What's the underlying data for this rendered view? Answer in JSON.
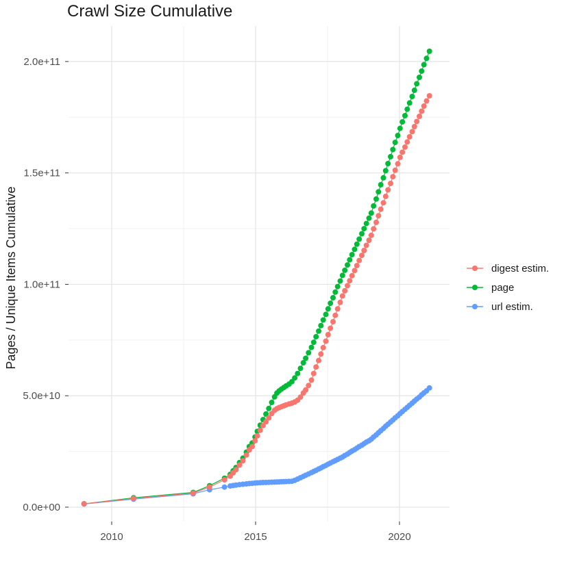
{
  "title": "Crawl Size Cumulative",
  "colors": {
    "digest": "#F8766D",
    "page": "#00BA38",
    "url": "#619CFF",
    "grid_major": "#E4E4E4",
    "grid_minor": "#F1F1F1",
    "tick": "#333333",
    "tick_label": "#4D4D4D",
    "text": "#1A1A1A",
    "background": "#FFFFFF"
  },
  "legend": {
    "position": "right",
    "items": [
      {
        "label": "digest estim.",
        "color": "#F8766D"
      },
      {
        "label": "page",
        "color": "#00BA38"
      },
      {
        "label": "url estim.",
        "color": "#619CFF"
      }
    ]
  },
  "chart_data": {
    "type": "line",
    "title": "Crawl Size Cumulative",
    "xlabel": "",
    "ylabel": "Pages / Unique Items Cumulative",
    "grid": true,
    "legend_position": "right",
    "x_ticks": [
      2010,
      2015,
      2020
    ],
    "x_tick_labels": [
      "2010",
      "2015",
      "2020"
    ],
    "x_minor": [
      2012.5,
      2017.5
    ],
    "y_ticks_e9": [
      0,
      50,
      100,
      150,
      200
    ],
    "y_tick_labels": [
      "0.0e+00",
      "5.0e+10",
      "1.0e+11",
      "1.5e+11",
      "2.0e+11"
    ],
    "y_minor_e9": [
      25,
      75,
      125,
      175
    ],
    "xlim": [
      2008.5,
      2021.738
    ],
    "ylim_e9": [
      -6.45,
      215.94
    ],
    "value_unit": "1e9 pages / unique items",
    "x": [
      2009.04,
      2010.76,
      2012.83,
      2013.4,
      2013.92,
      2014.12,
      2014.22,
      2014.32,
      2014.44,
      2014.56,
      2014.68,
      2014.78,
      2014.88,
      2014.98,
      2015.06,
      2015.16,
      2015.26,
      2015.36,
      2015.46,
      2015.56,
      2015.66,
      2015.74,
      2015.82,
      2015.9,
      2015.98,
      2016.06,
      2016.16,
      2016.26,
      2016.36,
      2016.46,
      2016.56,
      2016.66,
      2016.74,
      2016.84,
      2016.94,
      2017.02,
      2017.1,
      2017.19,
      2017.27,
      2017.35,
      2017.44,
      2017.52,
      2017.6,
      2017.69,
      2017.77,
      2017.85,
      2017.94,
      2018.02,
      2018.1,
      2018.19,
      2018.27,
      2018.35,
      2018.44,
      2018.52,
      2018.6,
      2018.69,
      2018.77,
      2018.85,
      2018.94,
      2019.02,
      2019.1,
      2019.19,
      2019.27,
      2019.35,
      2019.44,
      2019.52,
      2019.6,
      2019.69,
      2019.77,
      2019.85,
      2019.94,
      2020.02,
      2020.1,
      2020.19,
      2020.27,
      2020.35,
      2020.44,
      2020.52,
      2020.6,
      2020.69,
      2020.77,
      2020.85,
      2020.94,
      2021.04
    ],
    "series": [
      {
        "name": "digest estim.",
        "color": "#F8766D",
        "values_e9": [
          1.5,
          3.9,
          6.3,
          9.0,
          12.3,
          13.9,
          15.4,
          16.8,
          18.9,
          20.8,
          23.4,
          25.7,
          27.2,
          29.8,
          32.0,
          34.5,
          36.6,
          38.3,
          40.1,
          42.0,
          43.5,
          44.2,
          44.7,
          45.1,
          45.5,
          45.9,
          46.3,
          46.7,
          47.2,
          48.0,
          49.4,
          51.2,
          52.6,
          54.6,
          57.0,
          60.0,
          62.9,
          65.8,
          68.7,
          71.6,
          74.5,
          77.4,
          80.3,
          83.2,
          86.1,
          89.0,
          91.9,
          94.8,
          97.1,
          99.4,
          101.6,
          103.9,
          106.2,
          108.4,
          110.7,
          113.0,
          115.2,
          117.5,
          119.8,
          122.0,
          124.9,
          127.8,
          130.8,
          133.7,
          136.6,
          139.5,
          142.4,
          145.3,
          148.3,
          151.2,
          154.1,
          157.0,
          159.3,
          161.6,
          163.9,
          166.2,
          168.5,
          170.8,
          173.1,
          175.4,
          177.7,
          180.0,
          182.3,
          184.6
        ]
      },
      {
        "name": "page",
        "color": "#00BA38",
        "values_e9": [
          1.5,
          4.2,
          6.6,
          9.6,
          13.0,
          14.7,
          16.3,
          17.8,
          20.0,
          22.0,
          24.7,
          27.2,
          28.8,
          31.5,
          34.0,
          36.8,
          39.3,
          41.8,
          44.3,
          47.0,
          49.5,
          51.2,
          52.2,
          53.0,
          53.7,
          54.4,
          55.2,
          56.3,
          58.0,
          60.0,
          62.3,
          64.8,
          66.8,
          69.3,
          71.7,
          74.0,
          76.5,
          79.0,
          81.5,
          84.0,
          86.5,
          89.0,
          91.5,
          94.0,
          96.5,
          99.0,
          101.5,
          104.0,
          106.3,
          108.7,
          111.0,
          113.3,
          115.7,
          118.0,
          120.3,
          122.7,
          125.0,
          127.3,
          129.7,
          132.0,
          135.2,
          138.3,
          141.5,
          144.7,
          147.8,
          151.0,
          154.2,
          157.3,
          160.5,
          163.7,
          166.8,
          170.0,
          172.9,
          175.7,
          178.6,
          181.4,
          184.3,
          187.1,
          190.0,
          192.9,
          195.7,
          198.6,
          201.4,
          204.6
        ]
      },
      {
        "name": "url estim.",
        "color": "#619CFF",
        "values_e9": [
          1.4,
          3.6,
          6.0,
          7.8,
          9.0,
          9.5,
          9.7,
          9.9,
          10.1,
          10.3,
          10.45,
          10.6,
          10.7,
          10.85,
          10.9,
          11.0,
          11.05,
          11.1,
          11.15,
          11.2,
          11.25,
          11.3,
          11.35,
          11.4,
          11.45,
          11.5,
          11.55,
          11.6,
          12.0,
          12.6,
          13.2,
          13.8,
          14.3,
          14.9,
          15.5,
          16.0,
          16.5,
          17.1,
          17.6,
          18.2,
          18.7,
          19.3,
          19.8,
          20.4,
          20.9,
          21.4,
          22.0,
          22.5,
          23.2,
          23.8,
          24.5,
          25.2,
          25.8,
          26.5,
          27.2,
          27.8,
          28.5,
          29.2,
          29.8,
          30.5,
          31.5,
          32.4,
          33.4,
          34.3,
          35.3,
          36.3,
          37.2,
          38.2,
          39.1,
          40.1,
          41.0,
          42.0,
          42.9,
          43.9,
          44.8,
          45.7,
          46.7,
          47.6,
          48.5,
          49.4,
          50.4,
          51.3,
          52.2,
          53.5
        ]
      }
    ],
    "z_order": [
      1,
      2,
      0
    ]
  }
}
